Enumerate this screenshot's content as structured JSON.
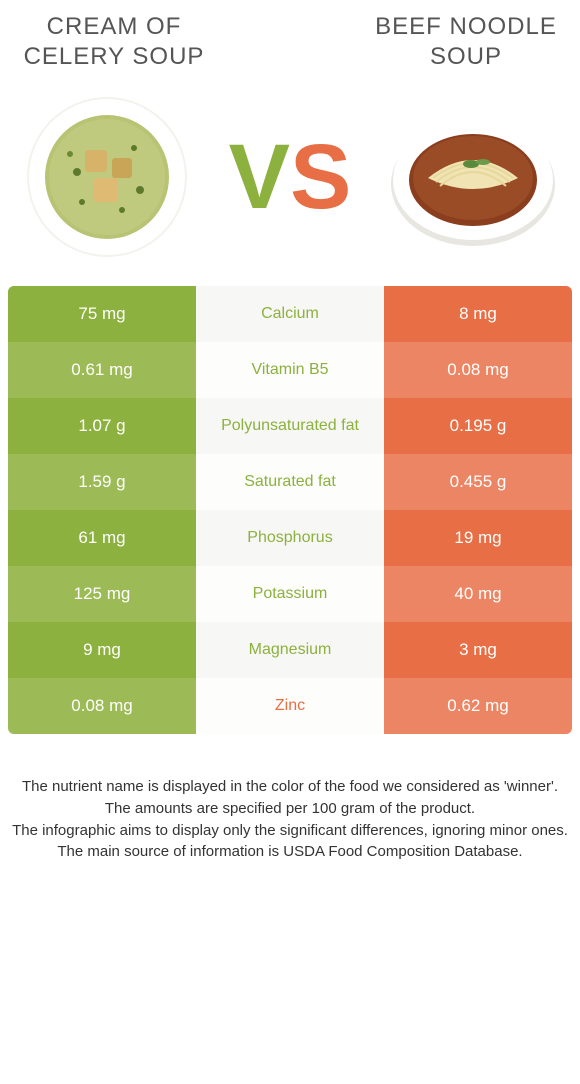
{
  "left": {
    "title": "Cream of celery soup",
    "color": "#8cb13e",
    "alt_row_color": "#9cbb56",
    "mid_label_color": "#8cb13e"
  },
  "right": {
    "title": "Beef noodle soup",
    "color": "#e86e45",
    "alt_row_color": "#eb8564",
    "mid_label_color": "#e86e45"
  },
  "vs": {
    "v_color": "#8cb13e",
    "s_color": "#e86e45"
  },
  "mid": {
    "bg_color": "#f7f7f5",
    "alt_bg_color": "#fdfdfc"
  },
  "rows": [
    {
      "left": "75 mg",
      "label": "Calcium",
      "right": "8 mg",
      "winner": "left"
    },
    {
      "left": "0.61 mg",
      "label": "Vitamin B5",
      "right": "0.08 mg",
      "winner": "left"
    },
    {
      "left": "1.07 g",
      "label": "Polyunsaturated fat",
      "right": "0.195 g",
      "winner": "left"
    },
    {
      "left": "1.59 g",
      "label": "Saturated fat",
      "right": "0.455 g",
      "winner": "left"
    },
    {
      "left": "61 mg",
      "label": "Phosphorus",
      "right": "19 mg",
      "winner": "left"
    },
    {
      "left": "125 mg",
      "label": "Potassium",
      "right": "40 mg",
      "winner": "left"
    },
    {
      "left": "9 mg",
      "label": "Magnesium",
      "right": "3 mg",
      "winner": "left"
    },
    {
      "left": "0.08 mg",
      "label": "Zinc",
      "right": "0.62 mg",
      "winner": "right"
    }
  ],
  "footer": [
    "The nutrient name is displayed in the color of the food we considered as 'winner'.",
    "The amounts are specified per 100 gram of the product.",
    "The infographic aims to display only the significant differences, ignoring minor ones.",
    "The main source of information is USDA Food Composition Database."
  ]
}
